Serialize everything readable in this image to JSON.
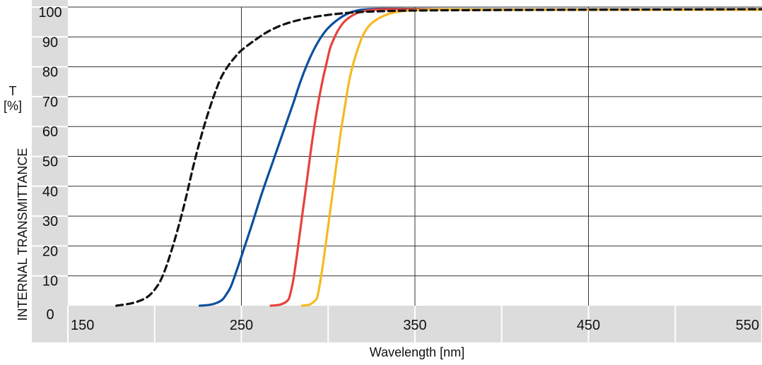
{
  "chart_data": {
    "type": "line",
    "xlabel": "Wavelength [nm]",
    "ylabel": "INTERNAL TRANSMITTANCE",
    "ylabel_symbol": "T",
    "ylabel_unit": "[%]",
    "xlim": [
      150,
      550
    ],
    "ylim": [
      0,
      100
    ],
    "x_ticks": [
      150,
      250,
      350,
      450,
      550
    ],
    "y_ticks": [
      0,
      10,
      20,
      30,
      40,
      50,
      60,
      70,
      80,
      90,
      100
    ],
    "x_tick_labels": [
      "150",
      "250",
      "350",
      "450",
      "550"
    ],
    "y_tick_labels": [
      "0",
      "10",
      "20",
      "30",
      "40",
      "50",
      "60",
      "70",
      "80",
      "90",
      "100"
    ],
    "grid": true,
    "colors": {
      "series_dashed": "#111111",
      "series_blue": "#0a4f9e",
      "series_red": "#e8413c",
      "series_yellow": "#f6b921",
      "axis_band": "#dcdcdc",
      "grid": "#333333"
    },
    "series": [
      {
        "style": "dashed",
        "color": "#111111",
        "x": [
          178,
          188,
          196,
          202,
          206,
          210,
          214,
          218,
          222,
          226,
          230,
          234,
          238,
          242,
          246,
          250,
          258,
          266,
          276,
          290,
          310,
          330,
          360,
          400,
          450,
          500,
          550
        ],
        "y": [
          0,
          1,
          3,
          7,
          12,
          19,
          27,
          36,
          46,
          55,
          63,
          70,
          76,
          80,
          83,
          85.5,
          89,
          92,
          94.5,
          96.5,
          98,
          98.6,
          98.9,
          99,
          99.1,
          99.2,
          99.3
        ]
      },
      {
        "style": "solid",
        "color": "#0a4f9e",
        "x": [
          226,
          232,
          236,
          239,
          241,
          244,
          248,
          252,
          256,
          262,
          268,
          274,
          280,
          284,
          288,
          292,
          296,
          300,
          306,
          312,
          318,
          324,
          330,
          340,
          360,
          400,
          450,
          550
        ],
        "y": [
          0,
          0.3,
          1,
          2,
          3.5,
          6.5,
          13,
          20,
          27,
          38,
          48,
          58,
          68,
          75,
          81,
          86,
          90,
          93,
          96,
          98,
          99,
          99.3,
          99.4,
          99.4,
          99.3,
          99.2,
          99.2,
          99.2
        ]
      },
      {
        "style": "solid",
        "color": "#e8413c",
        "x": [
          267,
          272,
          275,
          277,
          278,
          280,
          282,
          285,
          288,
          291,
          294,
          297,
          299,
          301,
          303,
          306,
          310,
          316,
          322,
          330,
          340,
          360,
          400,
          450,
          550
        ],
        "y": [
          0,
          0.3,
          1,
          2,
          3.5,
          9,
          17,
          30,
          43,
          56,
          67,
          76,
          81,
          86,
          89,
          92.5,
          95.5,
          97.8,
          98.8,
          99.2,
          99.3,
          99.2,
          99.1,
          99.1,
          99.1
        ]
      },
      {
        "style": "solid",
        "color": "#f6b921",
        "x": [
          285,
          289,
          291,
          293,
          294,
          296,
          298,
          301,
          304,
          307,
          310,
          312,
          314,
          316,
          318,
          320,
          324,
          330,
          338,
          346,
          356,
          370,
          400,
          450,
          550
        ],
        "y": [
          0,
          0.3,
          1,
          2,
          3.5,
          10,
          18,
          31,
          44,
          57,
          68,
          75,
          80,
          84,
          87.5,
          90.5,
          94,
          96.5,
          98.2,
          98.8,
          99.1,
          99.2,
          99.1,
          99.1,
          99.1
        ]
      }
    ]
  }
}
